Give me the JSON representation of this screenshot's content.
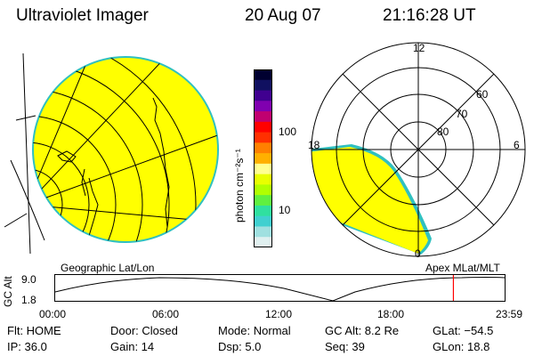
{
  "header": {
    "instrument": "Ultraviolet Imager",
    "date": "20 Aug 07",
    "time": "21:16:28 UT"
  },
  "colorbar": {
    "unit_label": "photon cm⁻²s⁻¹",
    "tick_labels": [
      "100",
      "10"
    ],
    "colors": [
      "#000030",
      "#101060",
      "#400090",
      "#8000b0",
      "#c00070",
      "#ff0000",
      "#ff3000",
      "#ff8000",
      "#ffb000",
      "#ffff90",
      "#e8ff00",
      "#b0ff00",
      "#60f040",
      "#30e0a0",
      "#40d0d0",
      "#a0e0e0",
      "#e0f0f0"
    ]
  },
  "left_panel": {
    "caption": "Geographic Lat/Lon",
    "fill_color": "#ffff00",
    "edge_color": "#30c0c0"
  },
  "right_panel": {
    "caption": "Apex MLat/MLT",
    "mlt_labels": {
      "top": "12",
      "left": "18",
      "right": "6",
      "bottom": "0"
    },
    "lat_labels": [
      "60",
      "70",
      "80"
    ],
    "fill_color": "#ffff00"
  },
  "timeline": {
    "ylabel": "GC Alt",
    "y_ticks": [
      "9.0",
      "1.8"
    ],
    "x_ticks": [
      "00:00",
      "06:00",
      "12:00",
      "18:00",
      "23:59"
    ],
    "marker_color": "#ff0000",
    "marker_time_fraction": 0.886
  },
  "info": {
    "flt": "Flt: HOME",
    "ip": "IP: 36.0",
    "door": "Door: Closed",
    "gain": "Gain: 14",
    "mode": "Mode: Normal",
    "dsp": "Dsp:    5.0",
    "gcalt": "GC Alt: 8.2 Re",
    "seq": "Seq: 39",
    "glat": "GLat: −54.5",
    "glon": "GLon:  18.8"
  }
}
